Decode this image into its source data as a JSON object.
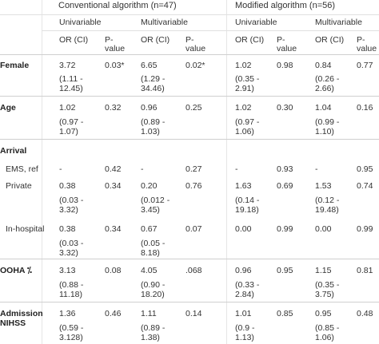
{
  "header": {
    "group1": "Conventional algorithm (n=47)",
    "group2": "Modified algorithm (n=56)",
    "uni": "Univariable",
    "multi": "Multivariable",
    "or_ci": "OR (CI)",
    "p": "P-",
    "value": "value"
  },
  "rows": {
    "female": {
      "label": "Female",
      "c_u_or": "3.72",
      "c_u_ci1": "(1.11 -",
      "c_u_ci2": "12.45)",
      "c_u_p": "0.03*",
      "c_m_or": "6.65",
      "c_m_ci1": "(1.29 -",
      "c_m_ci2": "34.46)",
      "c_m_p": "0.02*",
      "m_u_or": "1.02",
      "m_u_ci1": "(0.35 -",
      "m_u_ci2": "2.91)",
      "m_u_p": "0.98",
      "m_m_or": "0.84",
      "m_m_ci1": "(0.26 -",
      "m_m_ci2": "2.66)",
      "m_m_p": "0.77"
    },
    "age": {
      "label": "Age",
      "c_u_or": "1.02",
      "c_u_ci1": "(0.97 -",
      "c_u_ci2": "1.07)",
      "c_u_p": "0.32",
      "c_m_or": "0.96",
      "c_m_ci1": "(0.89 -",
      "c_m_ci2": "1.03)",
      "c_m_p": "0.25",
      "m_u_or": "1.02",
      "m_u_ci1": "(0.97 -",
      "m_u_ci2": "1.06)",
      "m_u_p": "0.30",
      "m_m_or": "1.04",
      "m_m_ci1": "(0.99 -",
      "m_m_ci2": "1.10)",
      "m_m_p": "0.16"
    },
    "arrival": {
      "label": "Arrival"
    },
    "ems": {
      "label": "EMS, ref",
      "c_u_or": "-",
      "c_u_p": "0.42",
      "c_m_or": "-",
      "c_m_p": "0.27",
      "m_u_or": "-",
      "m_u_p": "0.93",
      "m_m_or": "-",
      "m_m_p": "0.95"
    },
    "private": {
      "label": "Private",
      "c_u_or": "0.38",
      "c_u_ci1": "(0.03 -",
      "c_u_ci2": "3.32)",
      "c_u_p": "0.34",
      "c_m_or": "0.20",
      "c_m_ci1": "(0.012 -",
      "c_m_ci2": "3.45)",
      "c_m_p": "0.76",
      "m_u_or": "1.63",
      "m_u_ci1": "(0.14 -",
      "m_u_ci2": "19.18)",
      "m_u_p": "0.69",
      "m_m_or": "1.53",
      "m_m_ci1": "(0.12 -",
      "m_m_ci2": "19.48)",
      "m_m_p": "0.74"
    },
    "inhospital": {
      "label": "In-hospital",
      "c_u_or": "0.38",
      "c_u_ci1": "(0.03 -",
      "c_u_ci2": "3.32)",
      "c_u_p": "0.34",
      "c_m_or": "0.67",
      "c_m_ci1": "(0.05 -",
      "c_m_ci2": "8.18)",
      "c_m_p": "0.07",
      "m_u_or": "0.00",
      "m_u_p": "0.99",
      "m_m_or": "0.00",
      "m_m_p": "0.99"
    },
    "ooha": {
      "label": "OOHA ⁒",
      "c_u_or": "3.13",
      "c_u_ci1": "(0.88 -",
      "c_u_ci2": "11.18)",
      "c_u_p": "0.08",
      "c_m_or": "4.05",
      "c_m_ci1": "(0.90 -",
      "c_m_ci2": "18.20)",
      "c_m_p": ".068",
      "m_u_or": "0.96",
      "m_u_ci1": "(0.33 -",
      "m_u_ci2": "2.84)",
      "m_u_p": "0.95",
      "m_m_or": "1.15",
      "m_m_ci1": "(0.35 -",
      "m_m_ci2": "3.75)",
      "m_m_p": "0.81"
    },
    "nihss": {
      "label1": "Admission",
      "label2": "NIHSS",
      "c_u_or": "1.36",
      "c_u_ci1": "(0.59 -",
      "c_u_ci2": "3.128)",
      "c_u_p": "0.46",
      "c_m_or": "1.11",
      "c_m_ci1": "(0.89 -",
      "c_m_ci2": "1.38)",
      "c_m_p": "0.14",
      "m_u_or": "1.01",
      "m_u_ci1": "(0.9 -",
      "m_u_ci2": "1.13)",
      "m_u_p": "0.85",
      "m_m_or": "0.95",
      "m_m_ci1": "(0.85 -",
      "m_m_ci2": "1.06)",
      "m_m_p": "0.48"
    }
  }
}
